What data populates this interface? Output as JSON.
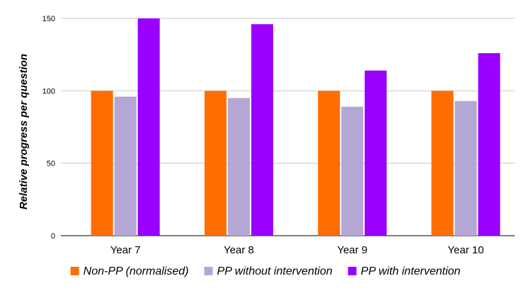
{
  "chart_data": {
    "type": "bar",
    "title": "",
    "xlabel": "",
    "ylabel": "Relative progress per question",
    "ylim": [
      0,
      150
    ],
    "yticks": [
      0,
      50,
      100,
      150
    ],
    "categories": [
      "Year 7",
      "Year 8",
      "Year 9",
      "Year 10"
    ],
    "series": [
      {
        "name": "Non-PP (normalised)",
        "values": [
          100,
          100,
          100,
          100
        ],
        "color": "#ff6d01"
      },
      {
        "name": "PP without intervention",
        "values": [
          96,
          95,
          89,
          93
        ],
        "color": "#b4a7d6"
      },
      {
        "name": "PP with intervention",
        "values": [
          150,
          146,
          114,
          126
        ],
        "color": "#9900ff"
      }
    ],
    "grid": true,
    "legend_position": "bottom"
  }
}
